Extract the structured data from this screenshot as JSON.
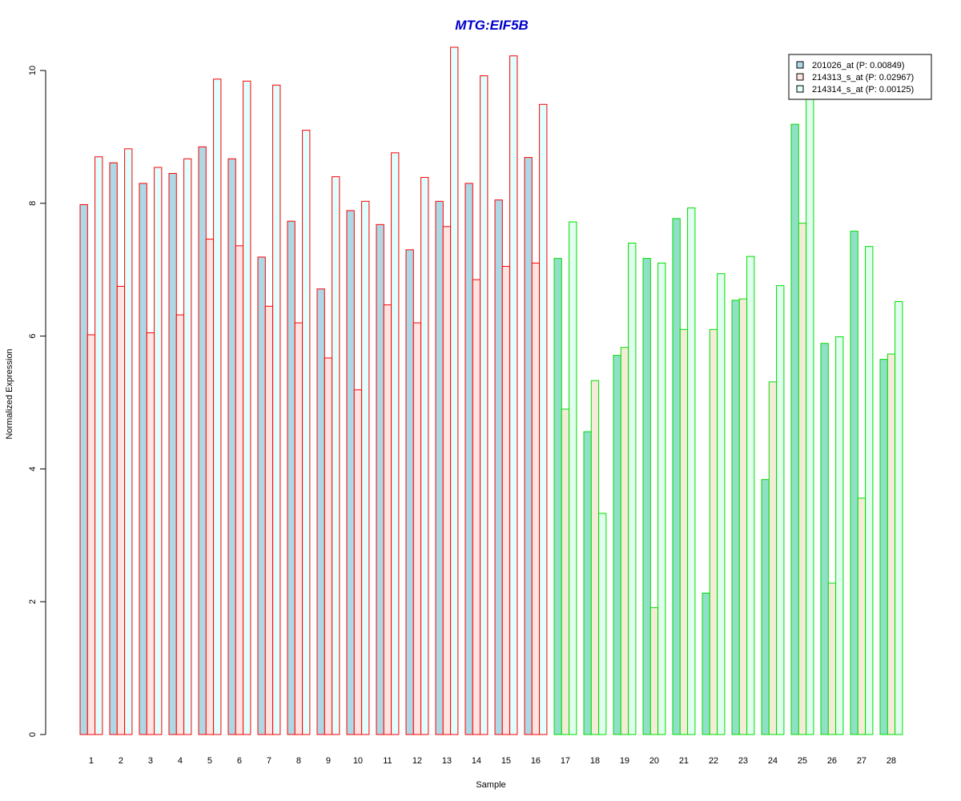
{
  "chart_data": {
    "type": "bar",
    "title": "MTG:EIF5B",
    "title_color": "#0000cc",
    "xlabel": "Sample",
    "ylabel": "Normalized Expression",
    "ylim": [
      0,
      10
    ],
    "yticks": [
      "0",
      "2",
      "4",
      "6",
      "8",
      "10"
    ],
    "grid": false,
    "legend_position": "top-right",
    "categories": [
      "1",
      "2",
      "3",
      "4",
      "5",
      "6",
      "7",
      "8",
      "9",
      "10",
      "11",
      "12",
      "13",
      "14",
      "15",
      "16",
      "17",
      "18",
      "19",
      "20",
      "21",
      "22",
      "23",
      "24",
      "25",
      "26",
      "27",
      "28"
    ],
    "group_border_colors": {
      "samples_1_to_16": "#ff0000",
      "samples_17_to_28": "#00dd00"
    },
    "series": [
      {
        "name": "201026_at (P: 0.00849)",
        "colors": {
          "group1": "#add8e6",
          "group2": "#90e0c8"
        },
        "values": [
          7.98,
          8.61,
          8.3,
          8.45,
          8.85,
          8.67,
          7.19,
          7.73,
          6.71,
          7.89,
          7.68,
          7.3,
          8.03,
          8.3,
          8.05,
          8.69,
          7.17,
          4.56,
          5.71,
          7.17,
          7.77,
          2.13,
          6.54,
          3.84,
          9.19,
          5.89,
          7.58,
          5.65
        ]
      },
      {
        "name": "214313_s_at (P: 0.02967)",
        "colors": {
          "group1": "#ffe4e1",
          "group2": "#f5ecd8"
        },
        "values": [
          6.02,
          6.75,
          6.05,
          6.32,
          7.46,
          7.36,
          6.45,
          6.2,
          5.67,
          5.19,
          6.47,
          6.2,
          7.65,
          6.85,
          7.05,
          7.1,
          4.9,
          5.33,
          5.83,
          1.91,
          6.1,
          6.1,
          6.56,
          5.31,
          7.7,
          2.28,
          3.56,
          5.73
        ]
      },
      {
        "name": "214314_s_at (P: 0.00125)",
        "colors": {
          "group1": "#e0ffff",
          "group2": "#e0ffee"
        },
        "values": [
          8.7,
          8.82,
          8.54,
          8.67,
          9.87,
          9.84,
          9.78,
          9.1,
          8.4,
          8.03,
          8.76,
          8.39,
          10.35,
          9.92,
          10.22,
          9.49,
          7.72,
          3.33,
          7.4,
          7.1,
          7.93,
          6.94,
          7.2,
          6.76,
          9.64,
          5.99,
          7.35,
          6.52
        ]
      }
    ]
  }
}
